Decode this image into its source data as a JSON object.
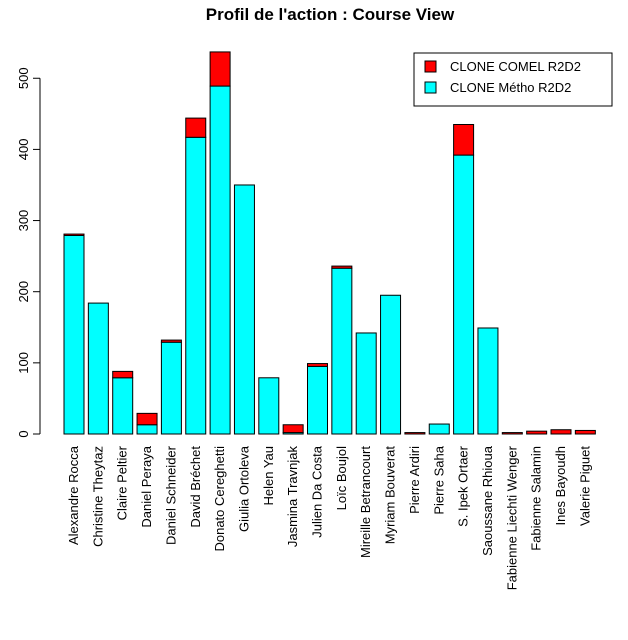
{
  "chart_data": {
    "type": "bar",
    "stacked": true,
    "title": "Profil de l'action : Course View",
    "xlabel": "",
    "ylabel": "",
    "ylim": [
      0,
      540
    ],
    "yticks": [
      0,
      100,
      200,
      300,
      400,
      500
    ],
    "legend_position": "top-right",
    "categories": [
      "Alexandre Rocca",
      "Christine Theytaz",
      "Claire Peltier",
      "Daniel Peraya",
      "Daniel Schneider",
      "David Bréchet",
      "Donato Cereghetti",
      "Giulia Ortoleva",
      "Helen Yau",
      "Jasmina Travnjak",
      "Julien Da Costa",
      "Loïc Boujol",
      "Mireille Betrancourt",
      "Myriam Bouverat",
      "Pierre Ardiri",
      "Pierre Saha",
      "S. Ipek Ortaer",
      "Saoussane Rhioua",
      "Fabienne Liechti Wenger",
      "Fabienne Salamin",
      "Ines Bayoudh",
      "Valerie Piguet"
    ],
    "series": [
      {
        "name": "CLONE Métho R2D2",
        "color": "#00FFFF",
        "values": [
          279,
          184,
          79,
          13,
          129,
          417,
          489,
          350,
          79,
          2,
          95,
          233,
          142,
          195,
          0,
          14,
          392,
          149,
          0,
          0,
          0,
          0
        ]
      },
      {
        "name": "CLONE COMEL R2D2",
        "color": "#FF0000",
        "values": [
          2,
          0,
          9,
          16,
          3,
          27,
          48,
          0,
          0,
          11,
          4,
          3,
          0,
          0,
          2,
          0,
          43,
          0,
          2,
          4,
          6,
          5
        ]
      }
    ]
  }
}
